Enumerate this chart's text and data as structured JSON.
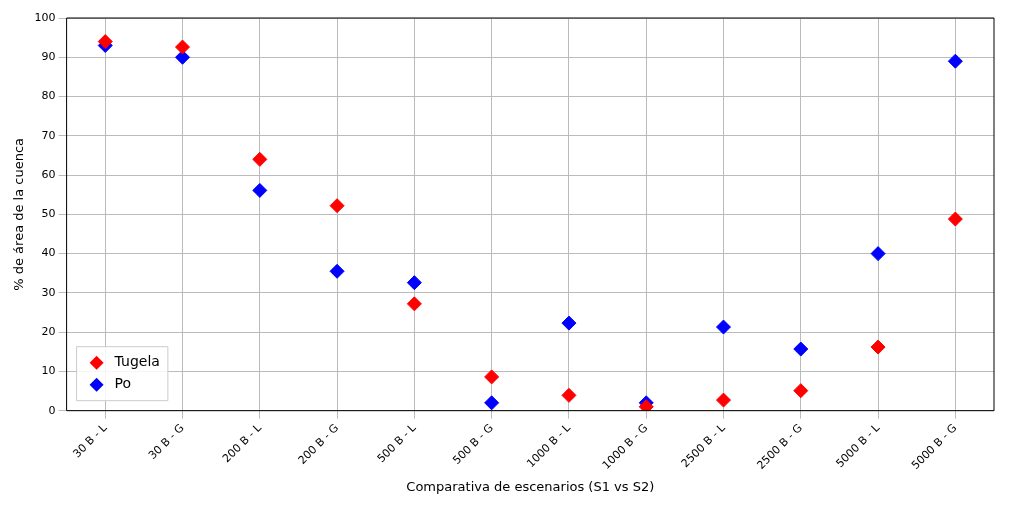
{
  "chart_data": {
    "type": "scatter",
    "xlabel": "Comparativa de escenarios (S1 vs S2)",
    "ylabel": "% de área de la cuenca",
    "categories": [
      "30 B - L",
      "30 B - G",
      "200 B - L",
      "200 B - G",
      "500 B - L",
      "500 B - G",
      "1000 B - L",
      "1000 B - G",
      "2500 B - L",
      "2500 B - G",
      "5000 B - L",
      "5000 B - G"
    ],
    "series": [
      {
        "name": "Tugela",
        "color": "#ff0000",
        "values": [
          94,
          92.6,
          64,
          52.2,
          27.2,
          8.6,
          3.9,
          1,
          2.7,
          5.1,
          16.2,
          48.8
        ]
      },
      {
        "name": "Po",
        "color": "#0000ff",
        "values": [
          93,
          90,
          56.1,
          35.5,
          32.6,
          2,
          22.3,
          2,
          21.3,
          15.7,
          40,
          89
        ]
      }
    ],
    "ylim": [
      0,
      100
    ],
    "yticks": [
      0,
      10,
      20,
      30,
      40,
      50,
      60,
      70,
      80,
      90,
      100
    ],
    "grid": true,
    "legend": "bottom left",
    "marker": "diamond"
  }
}
